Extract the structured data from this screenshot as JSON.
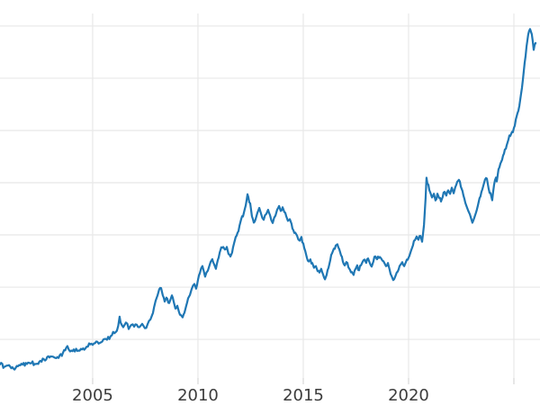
{
  "chart_data": {
    "type": "line",
    "title": "",
    "legend_visible": false,
    "grid": true,
    "background": "#ffffff",
    "colors": {
      "line": "#1f77b4",
      "grid": "#e8e8e8",
      "tick": "#dcdcdc",
      "label": "#3c3c3c"
    },
    "x_axis": {
      "tick_labels": [
        "2005",
        "2010",
        "2015",
        "2020"
      ],
      "tick_positions": [
        2005,
        2010,
        2015,
        2020
      ],
      "extra_gridlines": [
        2025
      ],
      "range": [
        2000.6,
        2026.24
      ]
    },
    "y_axis": {
      "tick_labels_visible": false,
      "gridline_values": [
        500,
        1000,
        1500,
        2000,
        2500,
        3000,
        3500
      ],
      "range": [
        130,
        3620
      ]
    },
    "series": [
      {
        "color": "#1f77b4",
        "points": [
          [
            2000.6,
            260
          ],
          [
            2000.81,
            240
          ],
          [
            2001.03,
            250
          ],
          [
            2001.24,
            215
          ],
          [
            2001.45,
            240
          ],
          [
            2001.67,
            265
          ],
          [
            2001.88,
            260
          ],
          [
            2002.09,
            275
          ],
          [
            2002.31,
            265
          ],
          [
            2002.52,
            300
          ],
          [
            2002.74,
            295
          ],
          [
            2002.95,
            330
          ],
          [
            2003.16,
            335
          ],
          [
            2003.38,
            320
          ],
          [
            2003.59,
            370
          ],
          [
            2003.8,
            430
          ],
          [
            2003.93,
            390
          ],
          [
            2004.1,
            405
          ],
          [
            2004.27,
            390
          ],
          [
            2004.44,
            415
          ],
          [
            2004.66,
            420
          ],
          [
            2004.83,
            455
          ],
          [
            2005.0,
            450
          ],
          [
            2005.17,
            485
          ],
          [
            2005.34,
            465
          ],
          [
            2005.51,
            500
          ],
          [
            2005.68,
            490
          ],
          [
            2005.85,
            535
          ],
          [
            2006.03,
            560
          ],
          [
            2006.15,
            585
          ],
          [
            2006.28,
            715
          ],
          [
            2006.37,
            645
          ],
          [
            2006.45,
            620
          ],
          [
            2006.58,
            665
          ],
          [
            2006.71,
            605
          ],
          [
            2006.84,
            640
          ],
          [
            2006.97,
            620
          ],
          [
            2007.09,
            645
          ],
          [
            2007.22,
            620
          ],
          [
            2007.35,
            655
          ],
          [
            2007.48,
            610
          ],
          [
            2007.61,
            645
          ],
          [
            2007.74,
            690
          ],
          [
            2007.82,
            735
          ],
          [
            2007.91,
            800
          ],
          [
            2007.99,
            870
          ],
          [
            2008.08,
            920
          ],
          [
            2008.16,
            975
          ],
          [
            2008.25,
            990
          ],
          [
            2008.33,
            920
          ],
          [
            2008.42,
            855
          ],
          [
            2008.5,
            895
          ],
          [
            2008.59,
            845
          ],
          [
            2008.68,
            880
          ],
          [
            2008.76,
            915
          ],
          [
            2008.85,
            855
          ],
          [
            2008.93,
            795
          ],
          [
            2009.02,
            820
          ],
          [
            2009.1,
            760
          ],
          [
            2009.19,
            735
          ],
          [
            2009.27,
            715
          ],
          [
            2009.36,
            760
          ],
          [
            2009.44,
            820
          ],
          [
            2009.53,
            890
          ],
          [
            2009.62,
            930
          ],
          [
            2009.7,
            975
          ],
          [
            2009.83,
            1035
          ],
          [
            2009.91,
            990
          ],
          [
            2010.0,
            1070
          ],
          [
            2010.09,
            1140
          ],
          [
            2010.21,
            1200
          ],
          [
            2010.34,
            1105
          ],
          [
            2010.47,
            1165
          ],
          [
            2010.6,
            1240
          ],
          [
            2010.68,
            1265
          ],
          [
            2010.77,
            1215
          ],
          [
            2010.85,
            1180
          ],
          [
            2010.94,
            1265
          ],
          [
            2011.03,
            1330
          ],
          [
            2011.11,
            1380
          ],
          [
            2011.2,
            1390
          ],
          [
            2011.28,
            1360
          ],
          [
            2011.37,
            1380
          ],
          [
            2011.45,
            1320
          ],
          [
            2011.54,
            1295
          ],
          [
            2011.62,
            1335
          ],
          [
            2011.71,
            1415
          ],
          [
            2011.79,
            1475
          ],
          [
            2011.88,
            1525
          ],
          [
            2011.97,
            1585
          ],
          [
            2012.05,
            1645
          ],
          [
            2012.14,
            1680
          ],
          [
            2012.22,
            1750
          ],
          [
            2012.31,
            1835
          ],
          [
            2012.35,
            1895
          ],
          [
            2012.39,
            1860
          ],
          [
            2012.48,
            1800
          ],
          [
            2012.56,
            1680
          ],
          [
            2012.65,
            1620
          ],
          [
            2012.74,
            1655
          ],
          [
            2012.82,
            1715
          ],
          [
            2012.91,
            1760
          ],
          [
            2012.99,
            1705
          ],
          [
            2013.12,
            1645
          ],
          [
            2013.25,
            1705
          ],
          [
            2013.33,
            1740
          ],
          [
            2013.42,
            1690
          ],
          [
            2013.55,
            1620
          ],
          [
            2013.68,
            1680
          ],
          [
            2013.76,
            1740
          ],
          [
            2013.85,
            1775
          ],
          [
            2013.93,
            1735
          ],
          [
            2014.02,
            1765
          ],
          [
            2014.1,
            1725
          ],
          [
            2014.19,
            1680
          ],
          [
            2014.27,
            1640
          ],
          [
            2014.36,
            1655
          ],
          [
            2014.44,
            1605
          ],
          [
            2014.53,
            1550
          ],
          [
            2014.62,
            1515
          ],
          [
            2014.7,
            1490
          ],
          [
            2014.83,
            1440
          ],
          [
            2014.91,
            1475
          ],
          [
            2015.0,
            1415
          ],
          [
            2015.09,
            1345
          ],
          [
            2015.17,
            1285
          ],
          [
            2015.26,
            1240
          ],
          [
            2015.34,
            1265
          ],
          [
            2015.43,
            1225
          ],
          [
            2015.51,
            1180
          ],
          [
            2015.6,
            1205
          ],
          [
            2015.68,
            1155
          ],
          [
            2015.77,
            1140
          ],
          [
            2015.85,
            1170
          ],
          [
            2015.94,
            1120
          ],
          [
            2016.03,
            1070
          ],
          [
            2016.11,
            1120
          ],
          [
            2016.2,
            1190
          ],
          [
            2016.28,
            1260
          ],
          [
            2016.37,
            1320
          ],
          [
            2016.45,
            1370
          ],
          [
            2016.54,
            1395
          ],
          [
            2016.62,
            1415
          ],
          [
            2016.71,
            1360
          ],
          [
            2016.79,
            1300
          ],
          [
            2016.88,
            1250
          ],
          [
            2016.97,
            1205
          ],
          [
            2017.05,
            1240
          ],
          [
            2017.14,
            1190
          ],
          [
            2017.22,
            1165
          ],
          [
            2017.31,
            1140
          ],
          [
            2017.39,
            1120
          ],
          [
            2017.48,
            1170
          ],
          [
            2017.56,
            1205
          ],
          [
            2017.65,
            1155
          ],
          [
            2017.74,
            1215
          ],
          [
            2017.82,
            1250
          ],
          [
            2017.91,
            1265
          ],
          [
            2017.99,
            1235
          ],
          [
            2018.08,
            1275
          ],
          [
            2018.16,
            1225
          ],
          [
            2018.25,
            1200
          ],
          [
            2018.33,
            1250
          ],
          [
            2018.42,
            1295
          ],
          [
            2018.5,
            1265
          ],
          [
            2018.59,
            1285
          ],
          [
            2018.68,
            1275
          ],
          [
            2018.76,
            1250
          ],
          [
            2018.85,
            1235
          ],
          [
            2018.93,
            1205
          ],
          [
            2019.02,
            1235
          ],
          [
            2019.1,
            1170
          ],
          [
            2019.19,
            1110
          ],
          [
            2019.27,
            1070
          ],
          [
            2019.36,
            1095
          ],
          [
            2019.44,
            1140
          ],
          [
            2019.53,
            1170
          ],
          [
            2019.62,
            1215
          ],
          [
            2019.7,
            1240
          ],
          [
            2019.79,
            1200
          ],
          [
            2019.87,
            1240
          ],
          [
            2019.96,
            1265
          ],
          [
            2020.04,
            1300
          ],
          [
            2020.13,
            1355
          ],
          [
            2020.21,
            1405
          ],
          [
            2020.3,
            1450
          ],
          [
            2020.38,
            1485
          ],
          [
            2020.47,
            1455
          ],
          [
            2020.56,
            1490
          ],
          [
            2020.64,
            1440
          ],
          [
            2020.73,
            1595
          ],
          [
            2020.81,
            1855
          ],
          [
            2020.85,
            2045
          ],
          [
            2020.94,
            1975
          ],
          [
            2021.03,
            1905
          ],
          [
            2021.11,
            1855
          ],
          [
            2021.2,
            1890
          ],
          [
            2021.28,
            1835
          ],
          [
            2021.37,
            1895
          ],
          [
            2021.45,
            1860
          ],
          [
            2021.54,
            1820
          ],
          [
            2021.62,
            1860
          ],
          [
            2021.71,
            1915
          ],
          [
            2021.79,
            1880
          ],
          [
            2021.88,
            1920
          ],
          [
            2021.97,
            1895
          ],
          [
            2022.05,
            1950
          ],
          [
            2022.14,
            1905
          ],
          [
            2022.22,
            1955
          ],
          [
            2022.31,
            2010
          ],
          [
            2022.39,
            2025
          ],
          [
            2022.48,
            1965
          ],
          [
            2022.56,
            1915
          ],
          [
            2022.65,
            1845
          ],
          [
            2022.74,
            1785
          ],
          [
            2022.82,
            1740
          ],
          [
            2022.91,
            1700
          ],
          [
            2022.99,
            1645
          ],
          [
            2023.03,
            1620
          ],
          [
            2023.12,
            1665
          ],
          [
            2023.2,
            1715
          ],
          [
            2023.29,
            1785
          ],
          [
            2023.37,
            1855
          ],
          [
            2023.46,
            1915
          ],
          [
            2023.55,
            1975
          ],
          [
            2023.63,
            2025
          ],
          [
            2023.72,
            2045
          ],
          [
            2023.8,
            1940
          ],
          [
            2023.89,
            1895
          ],
          [
            2023.97,
            1835
          ],
          [
            2024.06,
            1985
          ],
          [
            2024.15,
            2045
          ],
          [
            2024.19,
            2010
          ],
          [
            2024.27,
            2130
          ],
          [
            2024.36,
            2180
          ],
          [
            2024.44,
            2215
          ],
          [
            2024.53,
            2285
          ],
          [
            2024.62,
            2320
          ],
          [
            2024.66,
            2355
          ],
          [
            2024.74,
            2415
          ],
          [
            2024.83,
            2450
          ],
          [
            2024.91,
            2480
          ],
          [
            2025.0,
            2525
          ],
          [
            2025.09,
            2605
          ],
          [
            2025.17,
            2665
          ],
          [
            2025.26,
            2735
          ],
          [
            2025.34,
            2845
          ],
          [
            2025.43,
            2990
          ],
          [
            2025.51,
            3145
          ],
          [
            2025.6,
            3300
          ],
          [
            2025.68,
            3420
          ],
          [
            2025.77,
            3465
          ],
          [
            2025.85,
            3420
          ],
          [
            2025.94,
            3275
          ],
          [
            2026.03,
            3335
          ]
        ]
      }
    ]
  }
}
